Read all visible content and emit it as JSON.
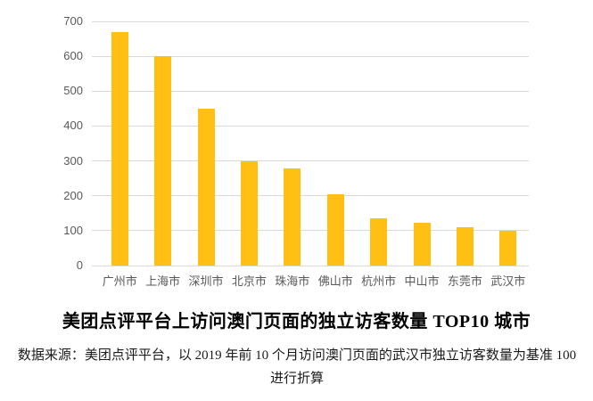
{
  "figure": {
    "background": "#ffffff"
  },
  "chart_data": {
    "type": "bar",
    "title": "美团点评平台上访问澳门页面的独立访客数量 TOP10 城市",
    "categories": [
      "广州市",
      "上海市",
      "深圳市",
      "北京市",
      "珠海市",
      "佛山市",
      "杭州市",
      "中山市",
      "东莞市",
      "武汉市"
    ],
    "values": [
      670,
      600,
      450,
      298,
      278,
      205,
      135,
      122,
      110,
      100
    ],
    "xlabel": "",
    "ylabel": "",
    "ylim": [
      0,
      700
    ],
    "yticks": [
      0,
      100,
      200,
      300,
      400,
      500,
      600,
      700
    ],
    "grid": true,
    "legend": false,
    "colors": {
      "bar": "#ffc013",
      "gridline": "#d9d9d9",
      "tick_label": "#595959",
      "title_text": "#000000",
      "source_text": "#1a1a1a"
    }
  },
  "caption": {
    "source": "数据来源：美团点评平台，以 2019 年前 10 个月访问澳门页面的武汉市独立访客数量为基准 100 进行折算"
  }
}
